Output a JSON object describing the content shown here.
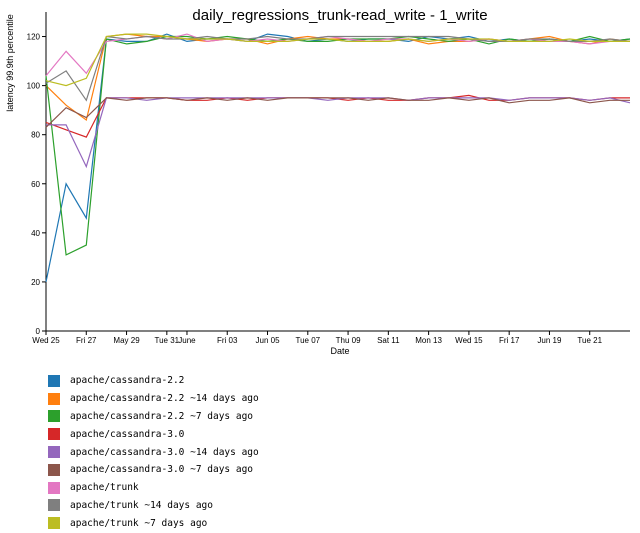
{
  "chart_data": {
    "type": "line",
    "title": "daily_regressions_trunk-read_write - 1_write",
    "xlabel": "Date",
    "ylabel": "latency 99.9th percentile",
    "ylim": [
      0,
      130
    ],
    "yticks": [
      0,
      20,
      40,
      60,
      80,
      100,
      120
    ],
    "xlim": [
      "2016-05-25",
      "2016-06-23"
    ],
    "xticks": [
      {
        "date": "2016-05-25",
        "label": "Wed 25"
      },
      {
        "date": "2016-05-27",
        "label": "Fri 27"
      },
      {
        "date": "2016-05-29",
        "label": "May 29"
      },
      {
        "date": "2016-05-31",
        "label": "Tue 31"
      },
      {
        "date": "2016-06-01",
        "label": "June"
      },
      {
        "date": "2016-06-03",
        "label": "Fri 03"
      },
      {
        "date": "2016-06-05",
        "label": "Jun 05"
      },
      {
        "date": "2016-06-07",
        "label": "Tue 07"
      },
      {
        "date": "2016-06-09",
        "label": "Thu 09"
      },
      {
        "date": "2016-06-11",
        "label": "Sat 11"
      },
      {
        "date": "2016-06-13",
        "label": "Mon 13"
      },
      {
        "date": "2016-06-15",
        "label": "Wed 15"
      },
      {
        "date": "2016-06-17",
        "label": "Fri 17"
      },
      {
        "date": "2016-06-19",
        "label": "Jun 19"
      },
      {
        "date": "2016-06-21",
        "label": "Tue 21"
      }
    ],
    "x": [
      "2016-05-25",
      "2016-05-26",
      "2016-05-27",
      "2016-05-28",
      "2016-05-29",
      "2016-05-30",
      "2016-05-31",
      "2016-06-01",
      "2016-06-02",
      "2016-06-03",
      "2016-06-04",
      "2016-06-05",
      "2016-06-06",
      "2016-06-07",
      "2016-06-08",
      "2016-06-09",
      "2016-06-10",
      "2016-06-11",
      "2016-06-12",
      "2016-06-13",
      "2016-06-14",
      "2016-06-15",
      "2016-06-16",
      "2016-06-17",
      "2016-06-18",
      "2016-06-19",
      "2016-06-20",
      "2016-06-21",
      "2016-06-22",
      "2016-06-23"
    ],
    "legend_position": "bottom",
    "series": [
      {
        "name": "apache/cassandra-2.2",
        "color": "#1f77b4",
        "values": [
          20,
          60,
          46,
          119,
          118,
          118,
          121,
          118,
          119,
          119,
          118,
          121,
          120,
          118,
          119,
          118,
          119,
          119,
          118,
          120,
          119,
          120,
          118,
          119,
          118,
          119,
          118,
          119,
          118,
          119
        ]
      },
      {
        "name": "apache/cassandra-2.2 ~14 days ago",
        "color": "#ff7f0e",
        "values": [
          100,
          92,
          86,
          120,
          121,
          120,
          120,
          119,
          118,
          119,
          119,
          117,
          119,
          120,
          119,
          119,
          118,
          118,
          119,
          117,
          118,
          118,
          119,
          118,
          119,
          120,
          118,
          117,
          119,
          118
        ]
      },
      {
        "name": "apache/cassandra-2.2 ~7 days ago",
        "color": "#2ca02c",
        "values": [
          104,
          31,
          35,
          119,
          117,
          118,
          120,
          120,
          119,
          120,
          119,
          118,
          119,
          118,
          118,
          119,
          119,
          119,
          120,
          119,
          118,
          119,
          117,
          119,
          118,
          119,
          118,
          120,
          118,
          119
        ]
      },
      {
        "name": "apache/cassandra-3.0",
        "color": "#d62728",
        "values": [
          85,
          82,
          79,
          95,
          95,
          95,
          95,
          94,
          94,
          95,
          94,
          95,
          95,
          95,
          95,
          94,
          95,
          94,
          94,
          95,
          95,
          96,
          94,
          94,
          95,
          95,
          95,
          94,
          95,
          95
        ]
      },
      {
        "name": "apache/cassandra-3.0 ~14 days ago",
        "color": "#9467bd",
        "values": [
          84,
          84,
          67,
          95,
          95,
          94,
          95,
          95,
          95,
          95,
          95,
          95,
          95,
          95,
          94,
          95,
          95,
          95,
          94,
          95,
          95,
          95,
          95,
          94,
          95,
          95,
          95,
          94,
          95,
          93
        ]
      },
      {
        "name": "apache/cassandra-3.0 ~7 days ago",
        "color": "#8c564b",
        "values": [
          83,
          91,
          87,
          95,
          94,
          95,
          95,
          94,
          95,
          94,
          95,
          94,
          95,
          95,
          95,
          95,
          94,
          95,
          94,
          94,
          95,
          94,
          95,
          93,
          94,
          94,
          95,
          93,
          94,
          94
        ]
      },
      {
        "name": "apache/trunk",
        "color": "#e377c2",
        "values": [
          104,
          114,
          105,
          118,
          119,
          120,
          119,
          121,
          118,
          119,
          118,
          119,
          118,
          119,
          120,
          119,
          118,
          119,
          119,
          118,
          119,
          118,
          119,
          118,
          119,
          118,
          118,
          117,
          118,
          118
        ]
      },
      {
        "name": "apache/trunk ~14 days ago",
        "color": "#7f7f7f",
        "values": [
          101,
          106,
          94,
          120,
          119,
          120,
          119,
          119,
          120,
          119,
          119,
          120,
          119,
          119,
          120,
          120,
          120,
          120,
          120,
          120,
          120,
          119,
          118,
          118,
          119,
          119,
          118,
          118,
          119,
          118
        ]
      },
      {
        "name": "apache/trunk ~7 days ago",
        "color": "#bcbd22",
        "values": [
          102,
          100,
          103,
          120,
          121,
          121,
          120,
          119,
          119,
          119,
          118,
          118,
          118,
          119,
          119,
          118,
          118,
          118,
          119,
          118,
          119,
          119,
          119,
          118,
          118,
          118,
          119,
          118,
          118,
          118
        ]
      }
    ]
  }
}
